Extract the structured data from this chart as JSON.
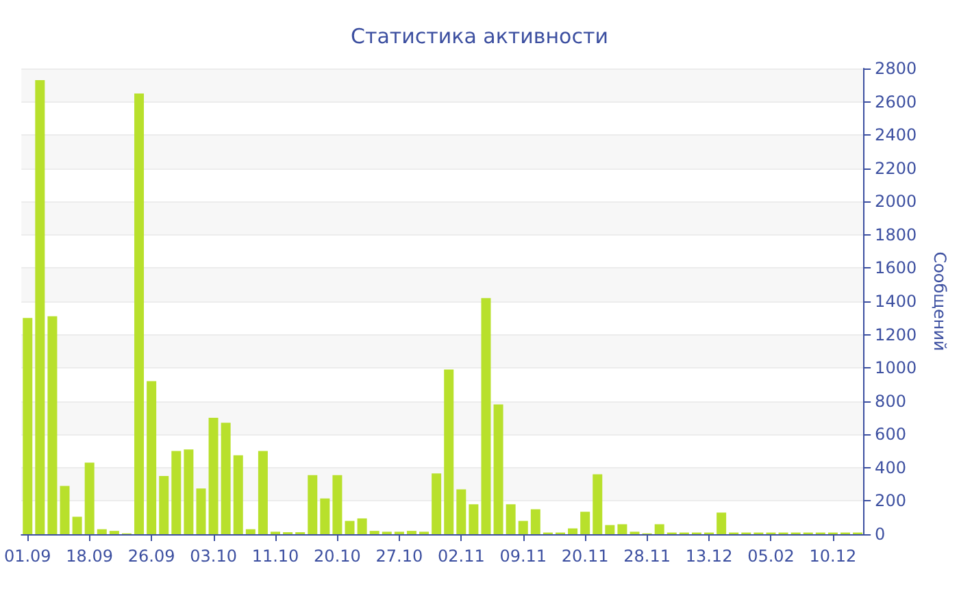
{
  "chart_data": {
    "type": "bar",
    "title": "Статистика активности",
    "ylabel": "Сообщений",
    "categories": [
      "01.09",
      null,
      null,
      null,
      null,
      "18.09",
      null,
      null,
      null,
      null,
      "26.09",
      null,
      null,
      null,
      null,
      "03.10",
      null,
      null,
      null,
      null,
      "11.10",
      null,
      null,
      null,
      null,
      "20.10",
      null,
      null,
      null,
      null,
      "27.10",
      null,
      null,
      null,
      null,
      "02.11",
      null,
      null,
      null,
      null,
      "09.11",
      null,
      null,
      null,
      null,
      "20.11",
      null,
      null,
      null,
      null,
      "28.11",
      null,
      null,
      null,
      null,
      "13.12",
      null,
      null,
      null,
      null,
      "05.02",
      null,
      null,
      null,
      null,
      "10.12",
      null,
      null
    ],
    "values": [
      1300,
      2730,
      1310,
      290,
      105,
      430,
      30,
      20,
      5,
      2650,
      920,
      350,
      500,
      510,
      275,
      700,
      670,
      475,
      30,
      500,
      15,
      12,
      12,
      355,
      215,
      355,
      80,
      95,
      20,
      15,
      15,
      20,
      15,
      365,
      990,
      270,
      180,
      1420,
      780,
      180,
      80,
      150,
      10,
      10,
      35,
      135,
      360,
      55,
      60,
      15,
      5,
      60,
      10,
      10,
      10,
      10,
      130,
      10,
      10,
      10,
      10,
      10,
      10,
      10,
      10,
      10,
      10,
      10
    ],
    "color": "#b8e02c",
    "ylim": [
      0,
      2800
    ],
    "yticks": [
      0,
      200,
      400,
      600,
      800,
      1000,
      1200,
      1400,
      1600,
      1800,
      2000,
      2200,
      2400,
      2600,
      2800
    ],
    "grid": "y"
  }
}
